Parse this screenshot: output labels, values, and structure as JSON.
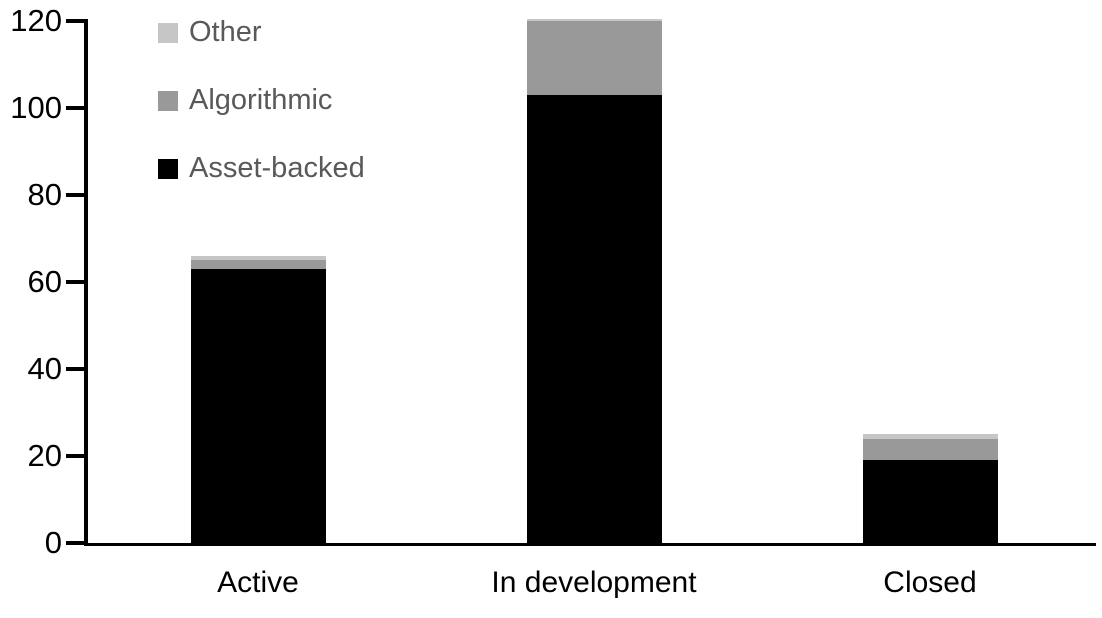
{
  "chart_data": {
    "type": "bar",
    "stacked": true,
    "title": "",
    "xlabel": "",
    "ylabel": "",
    "categories": [
      "Active",
      "In development",
      "Closed"
    ],
    "series": [
      {
        "name": "Asset-backed",
        "color": "#000000",
        "values": [
          63,
          103,
          19
        ]
      },
      {
        "name": "Algorithmic",
        "color": "#999999",
        "values": [
          2,
          17,
          5
        ]
      },
      {
        "name": "Other",
        "color": "#c6c6c6",
        "values": [
          1,
          0.5,
          1
        ]
      }
    ],
    "totals": [
      66,
      120.5,
      25
    ],
    "ylim": [
      0,
      120
    ],
    "yticks": [
      0,
      20,
      40,
      60,
      80,
      100,
      120
    ],
    "grid": false,
    "legend_position": "top-left",
    "legend_order": [
      "Other",
      "Algorithmic",
      "Asset-backed"
    ]
  },
  "colors": {
    "background": "#ffffff",
    "axis": "#000000",
    "tick_label": "#000000",
    "category_label": "#000000",
    "legend_text": "#595959"
  }
}
